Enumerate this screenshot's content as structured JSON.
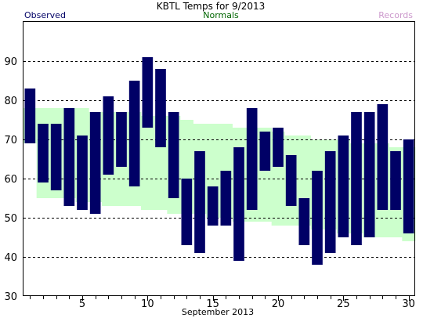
{
  "chart_data": {
    "type": "bar",
    "title": "KBTL Temps for 9/2013",
    "xlabel": "September 2013",
    "ylabel": "",
    "ylim": [
      30,
      100
    ],
    "xlim": [
      0.5,
      30.5
    ],
    "yticks": [
      30,
      40,
      50,
      60,
      70,
      80,
      90
    ],
    "xticks": [
      5,
      10,
      15,
      20,
      25,
      30
    ],
    "grid": true,
    "legend": {
      "placement": "top",
      "entries": [
        "Observed",
        "Normals",
        "Records"
      ]
    },
    "colors": {
      "observed": "#000066",
      "normals": "#ccffcc",
      "normals_text": "#006600",
      "records_text": "#cc99cc",
      "grid": "#000000"
    },
    "days": [
      1,
      2,
      3,
      4,
      5,
      6,
      7,
      8,
      9,
      10,
      11,
      12,
      13,
      14,
      15,
      16,
      17,
      18,
      19,
      20,
      21,
      22,
      23,
      24,
      25,
      26,
      27,
      28,
      29,
      30
    ],
    "series": [
      {
        "name": "Normals",
        "high": [
          78,
          78,
          78,
          78,
          78,
          77,
          77,
          77,
          77,
          76,
          76,
          76,
          75,
          74,
          74,
          74,
          73,
          73,
          73,
          72,
          71,
          71,
          70,
          70,
          70,
          69,
          69,
          69,
          68,
          68
        ],
        "low": [
          69,
          55,
          55,
          55,
          54,
          54,
          53,
          53,
          53,
          52,
          52,
          51,
          51,
          51,
          50,
          50,
          49,
          49,
          49,
          48,
          48,
          48,
          47,
          47,
          46,
          46,
          45,
          45,
          45,
          44
        ]
      },
      {
        "name": "Observed",
        "high": [
          83,
          74,
          74,
          78,
          71,
          77,
          81,
          77,
          85,
          91,
          88,
          77,
          60,
          67,
          58,
          62,
          68,
          78,
          72,
          73,
          66,
          55,
          62,
          67,
          71,
          77,
          77,
          79,
          67,
          70
        ],
        "low": [
          69,
          59,
          57,
          53,
          52,
          51,
          61,
          63,
          58,
          73,
          68,
          55,
          43,
          41,
          48,
          48,
          39,
          52,
          62,
          63,
          53,
          43,
          38,
          41,
          45,
          43,
          45,
          52,
          52,
          46
        ]
      }
    ]
  }
}
